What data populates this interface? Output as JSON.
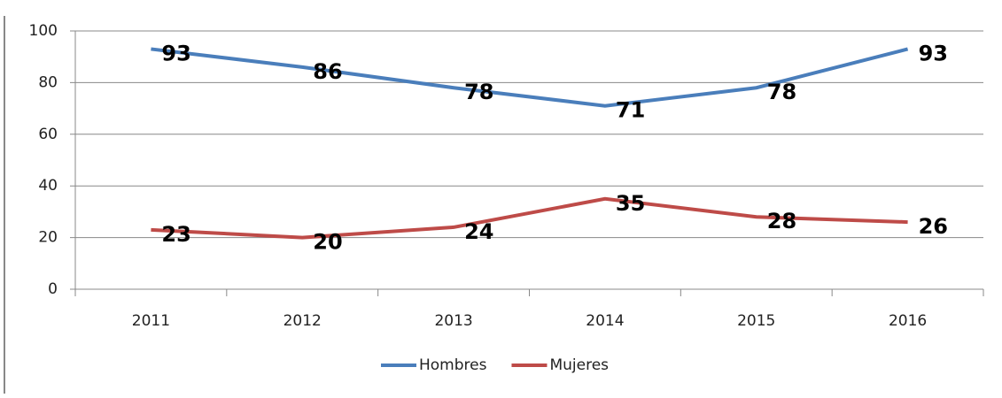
{
  "chart_data": {
    "type": "line",
    "categories": [
      "2011",
      "2012",
      "2013",
      "2014",
      "2015",
      "2016"
    ],
    "series": [
      {
        "name": "Hombres",
        "color": "#4a7ebb",
        "values": [
          93,
          86,
          78,
          71,
          78,
          93
        ]
      },
      {
        "name": "Mujeres",
        "color": "#be4b48",
        "values": [
          23,
          20,
          24,
          35,
          28,
          26
        ]
      }
    ],
    "ylim": [
      0,
      100
    ],
    "yticks": [
      0,
      20,
      40,
      60,
      80,
      100
    ],
    "grid": true,
    "legend": "bottom"
  }
}
